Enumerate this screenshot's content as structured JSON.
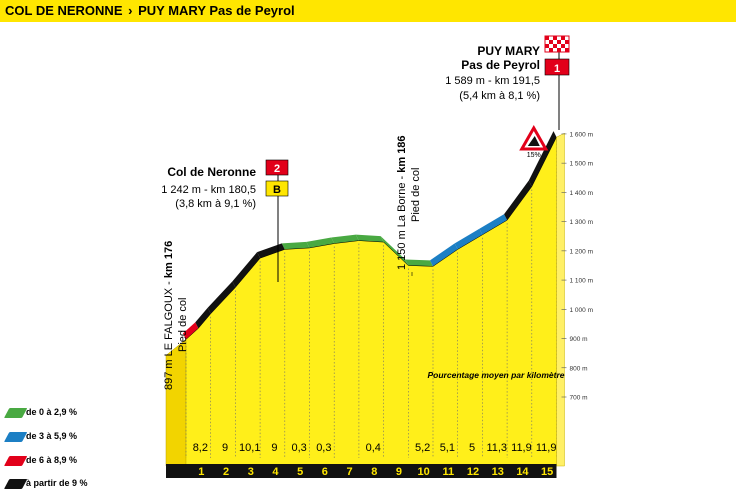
{
  "header": {
    "title_start": "COL DE NERONNE",
    "separator": "›",
    "title_finish": "PUY MARY Pas de Peyrol"
  },
  "colors": {
    "bar": "#ffe600",
    "profile_fill": "#ffef1a",
    "green": "#49a942",
    "blue": "#1c7fc4",
    "red": "#e2001a",
    "black": "#111111"
  },
  "legend": [
    {
      "label": "de 0 à 2,9 %",
      "color": "#49a942"
    },
    {
      "label": "de 3 à 5,9 %",
      "color": "#1c7fc4"
    },
    {
      "label": "de 6 à 8,9 %",
      "color": "#e2001a"
    },
    {
      "label": "à partir de 9 %",
      "color": "#111111"
    }
  ],
  "chart_data": {
    "type": "area",
    "xlabel": "",
    "ylabel": "",
    "y_ticks": [
      "700 m",
      "800 m",
      "900 m",
      "1 000 m",
      "1 100 m",
      "1 200 m",
      "1 300 m",
      "1 400 m",
      "1 500 m",
      "1 600 m"
    ],
    "y_tick_values": [
      700,
      800,
      900,
      1000,
      1100,
      1200,
      1300,
      1400,
      1500,
      1600
    ],
    "ylim": [
      700,
      1600
    ],
    "km_labels": [
      "1",
      "2",
      "3",
      "4",
      "5",
      "6",
      "7",
      "8",
      "9",
      "10",
      "11",
      "12",
      "13",
      "14",
      "15"
    ],
    "profile": {
      "x_km": [
        0,
        0.5,
        1,
        2,
        3,
        4,
        5,
        6,
        7,
        8,
        9,
        10,
        11,
        12,
        13,
        14,
        15
      ],
      "elevation_m": [
        897,
        935,
        985,
        1075,
        1175,
        1205,
        1210,
        1225,
        1235,
        1230,
        1150,
        1147,
        1205,
        1255,
        1305,
        1420,
        1589
      ],
      "gradient_class": [
        "red",
        "black",
        "black",
        "black",
        "black",
        "green",
        "green",
        "green",
        "green",
        "green",
        "green",
        "blue",
        "blue",
        "blue",
        "black",
        "black"
      ]
    },
    "km_gradients": [
      "8,2",
      "9",
      "10,1",
      "9",
      "0,3",
      "0,3",
      "",
      "0,4",
      "",
      "5,2",
      "5,1",
      "5",
      "11,3",
      "11,9",
      "11,9"
    ],
    "gradient_caption": "Pourcentage moyen par kilomètre",
    "steep_sign": "15%",
    "annotations": {
      "start": {
        "line1_a": "897 m LE FALGOUX - ",
        "line1_b": "km 176",
        "line2": "Pied de col"
      },
      "neronne": {
        "title": "Col de Neronne",
        "line1": "1 242 m - km 180,5",
        "line2": "(3,8 km à 9,1 %)",
        "badge_number": "2",
        "badge_letter": "B"
      },
      "laborne": {
        "line1_a": "1 150 m La Borne - ",
        "line1_b": "km 186",
        "line2": "Pied de col"
      },
      "puymary": {
        "title1": "PUY MARY",
        "title2": "Pas de Peyrol",
        "line1": "1 589 m -  km 191,5",
        "line2": "(5,4 km à 8,1 %)",
        "badge_number": "1"
      }
    }
  }
}
